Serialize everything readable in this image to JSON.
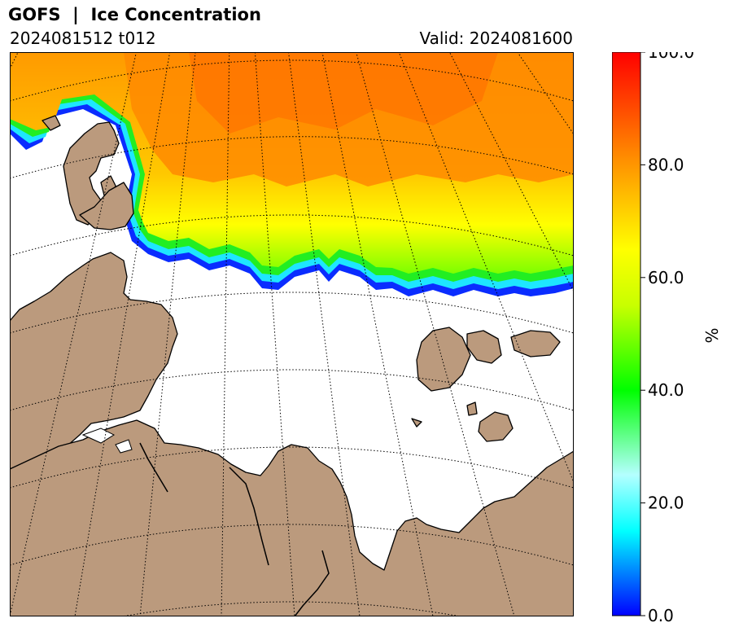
{
  "header": {
    "title": "GOFS  |  Ice Concentration",
    "init_label": "2024081512 t012",
    "valid_label": "Valid: 2024081600"
  },
  "colorbar": {
    "label": "%",
    "ticks": [
      "0.0",
      "20.0",
      "40.0",
      "60.0",
      "80.0",
      "100.0"
    ],
    "min": 0,
    "max": 100,
    "stops": [
      {
        "value": 0,
        "color": "#0000ff"
      },
      {
        "value": 15,
        "color": "#00ffff"
      },
      {
        "value": 25,
        "color": "#b4ffff"
      },
      {
        "value": 40,
        "color": "#00ff00"
      },
      {
        "value": 55,
        "color": "#c8ff00"
      },
      {
        "value": 65,
        "color": "#ffff00"
      },
      {
        "value": 80,
        "color": "#ff9600"
      },
      {
        "value": 100,
        "color": "#ff0000"
      }
    ]
  },
  "colors": {
    "land": "#bb9a7d",
    "ocean": "#ffffff",
    "coastline": "#000000",
    "graticule": "#000000"
  }
}
